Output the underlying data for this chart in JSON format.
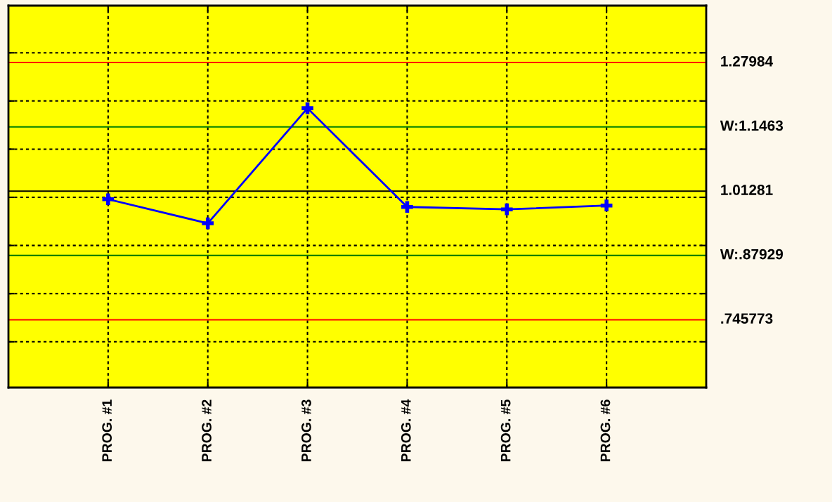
{
  "chart_data": {
    "type": "line",
    "categories": [
      "PROG. #1",
      "PROG. #2",
      "PROG. #3",
      "PROG. #4",
      "PROG. #5",
      "PROG. #6"
    ],
    "series": [
      {
        "color": "#0000ff",
        "values": [
          0.996,
          0.946,
          1.185,
          0.98,
          0.975,
          0.983
        ]
      }
    ],
    "ylim": [
      0.605,
      1.398
    ],
    "yticks": [
      {
        "value": 0.7,
        "label": null
      },
      {
        "value": 0.8,
        "label": null
      },
      {
        "value": 0.9,
        "label": null
      },
      {
        "value": 1.0,
        "label": null
      },
      {
        "value": 1.1,
        "label": null
      },
      {
        "value": 1.2,
        "label": null
      },
      {
        "value": 1.3,
        "label": null
      }
    ],
    "ref_lines": [
      {
        "axis": "y",
        "value": 1.27984,
        "label": "1.27984",
        "color": "#ff0000"
      },
      {
        "axis": "y",
        "value": 1.1463,
        "label": "W:1.1463",
        "color": "#008000"
      },
      {
        "axis": "y",
        "value": 1.01281,
        "label": "1.01281",
        "color": "#000000"
      },
      {
        "axis": "y",
        "value": 0.87929,
        "label": "W:.87929",
        "color": "#008000"
      },
      {
        "axis": "y",
        "value": 0.745773,
        "label": ".745773",
        "color": "#ff0000"
      }
    ],
    "grid": true,
    "marker": "cross",
    "line_style": "solid"
  }
}
